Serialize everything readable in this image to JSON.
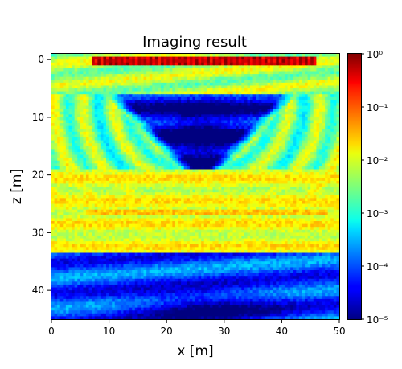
{
  "chart_data": {
    "type": "heatmap",
    "title": "Imaging result",
    "xlabel": "x [m]",
    "ylabel": "z [m]",
    "xlim": [
      0,
      50
    ],
    "ylim": [
      45,
      -1
    ],
    "y_inverted": true,
    "x_ticks": [
      0,
      10,
      20,
      30,
      40,
      50
    ],
    "y_ticks": [
      0,
      10,
      20,
      30,
      40
    ],
    "colormap": "jet",
    "color_scale": "log",
    "colorbar": {
      "min": 1e-05,
      "max": 1,
      "tick_labels": [
        "10⁰",
        "10⁻¹",
        "10⁻²",
        "10⁻³",
        "10⁻⁴",
        "10⁻⁵"
      ],
      "tick_values": [
        1,
        0.1,
        0.01,
        0.001,
        0.0001,
        1e-05
      ]
    },
    "features": [
      {
        "label": "source/receiver line",
        "z": 0,
        "x_range": [
          7,
          46
        ],
        "log10_value": 0
      },
      {
        "label": "upper layer band",
        "z_range": [
          1,
          6
        ],
        "log10_value": -2.3
      },
      {
        "label": "low-amplitude V-shaped zone",
        "z_range": [
          6,
          18
        ],
        "x_center": 26,
        "log10_value": -4.5
      },
      {
        "label": "reflector",
        "z": 26.5,
        "x_range": [
          5,
          48
        ],
        "log10_value": -1.2
      },
      {
        "label": "reflector",
        "z": 32.5,
        "x_range": [
          6,
          47
        ],
        "log10_value": -1.4
      },
      {
        "label": "lower low-amplitude zone",
        "z_range": [
          34,
          45
        ],
        "log10_value": -4.0
      },
      {
        "label": "bottom minimum",
        "z": 43,
        "x_center": 27,
        "log10_value": -4.9
      }
    ]
  }
}
